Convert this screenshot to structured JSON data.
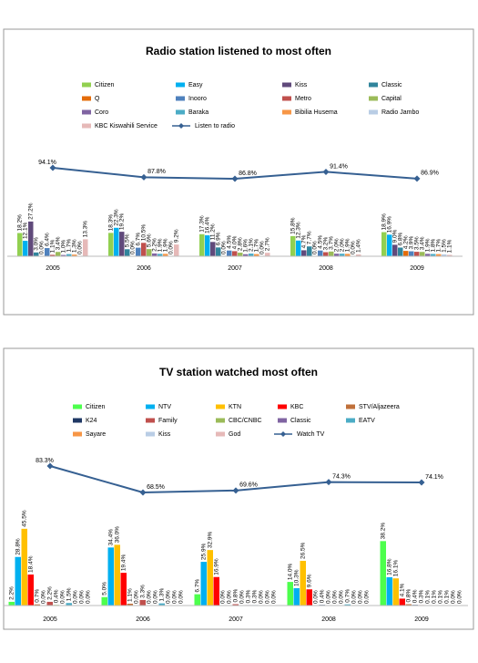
{
  "chart_data": [
    {
      "type": "bar",
      "title": "Radio station listened to most often",
      "categories": [
        "2005",
        "2006",
        "2007",
        "2008",
        "2009"
      ],
      "series": [
        {
          "name": "Citizen",
          "color": "#92d050",
          "values": [
            18.2,
            18.3,
            17.3,
            15.8,
            18.9
          ],
          "value_labels": [
            "18.2%",
            "18.3%",
            "17.3%",
            "15.8%",
            "18.9%"
          ]
        },
        {
          "name": "Easy",
          "color": "#00b0f0",
          "values": [
            12.1,
            22.3,
            16.4,
            12.3,
            16.9
          ],
          "value_labels": [
            "12.1%",
            "22.3%",
            "16.4%",
            "12.3%",
            "16.9%"
          ]
        },
        {
          "name": "Kiss",
          "color": "#604a7b",
          "values": [
            27.2,
            19.2,
            11.2,
            4.7,
            9.0
          ],
          "value_labels": [
            "27.2%",
            "19.2%",
            "11.2%",
            "4.7%",
            "9.0%"
          ]
        },
        {
          "name": "Classic",
          "color": "#31859c",
          "values": [
            3.0,
            5.5,
            6.9,
            7.7,
            6.8
          ],
          "value_labels": [
            "3.0%",
            "5.5%",
            "6.9%",
            "7.7%",
            "6.8%"
          ]
        },
        {
          "name": "Q",
          "color": "#e46c0a",
          "values": [
            0.0,
            0.0,
            0.0,
            0.0,
            4.2
          ],
          "value_labels": [
            "0.0%",
            "0.0%",
            "0.0%",
            "0.0%",
            "4.2%"
          ]
        },
        {
          "name": "Inooro",
          "color": "#4f81bd",
          "values": [
            6.4,
            6.7,
            4.5,
            4.5,
            3.9
          ],
          "value_labels": [
            "6.4%",
            "6.7%",
            "4.5%",
            "4.5%",
            "3.9%"
          ]
        },
        {
          "name": "Metro",
          "color": "#c0504d",
          "values": [
            1.1,
            10.5,
            4.0,
            3.2,
            3.5
          ],
          "value_labels": [
            "1.1%",
            "10.5%",
            "4.0%",
            "3.2%",
            "3.5%"
          ]
        },
        {
          "name": "Capital",
          "color": "#9bbb59",
          "values": [
            3.4,
            5.6,
            2.8,
            3.7,
            3.4
          ],
          "value_labels": [
            "3.4%",
            "5.6%",
            "2.8%",
            "3.7%",
            "3.4%"
          ]
        },
        {
          "name": "Coro",
          "color": "#8064a2",
          "values": [
            1.0,
            2.2,
            1.6,
            2.0,
            1.9
          ],
          "value_labels": [
            "1.0%",
            "2.2%",
            "1.6%",
            "2.0%",
            "1.9%"
          ]
        },
        {
          "name": "Baraka",
          "color": "#4bacc6",
          "values": [
            1.7,
            1.9,
            2.1,
            2.0,
            1.8
          ],
          "value_labels": [
            "1.7%",
            "1.9%",
            "2.1%",
            "2.0%",
            "1.8%"
          ]
        },
        {
          "name": "Bibilia Husema",
          "color": "#f79646",
          "values": [
            1.3,
            1.9,
            1.7,
            1.9,
            1.7
          ],
          "value_labels": [
            "1.3%",
            "1.9%",
            "1.7%",
            "1.9%",
            "1.7%"
          ]
        },
        {
          "name": "Radio Jambo",
          "color": "#b9cde5",
          "values": [
            0.0,
            0.0,
            0.0,
            0.0,
            1.5
          ],
          "value_labels": [
            "0.0%",
            "0.0%",
            "0.0%",
            "0.0%",
            "1.5%"
          ]
        },
        {
          "name": "KBC Kiswahili Service",
          "color": "#e6b9b8",
          "values": [
            13.3,
            9.2,
            2.7,
            1.4,
            1.1
          ],
          "value_labels": [
            "13.3%",
            "9.2%",
            "2.7%",
            "1.4%",
            "1.1%"
          ]
        },
        {
          "name": "Listen to radio",
          "type": "line",
          "color": "#366092",
          "values": [
            94.1,
            87.8,
            86.8,
            91.4,
            86.9
          ],
          "value_labels": [
            "94.1%",
            "87.8%",
            "86.8%",
            "91.4%",
            "86.9%"
          ]
        }
      ]
    },
    {
      "type": "bar",
      "title": "TV station watched most often",
      "categories": [
        "2005",
        "2006",
        "2007",
        "2008",
        "2009"
      ],
      "series": [
        {
          "name": "Citizen",
          "color": "#4dff4d",
          "values": [
            2.2,
            5.0,
            6.7,
            14.0,
            38.2
          ],
          "value_labels": [
            "2.2%",
            "5.0%",
            "6.7%",
            "14.0%",
            "38.2%"
          ]
        },
        {
          "name": "NTV",
          "color": "#00b0f0",
          "values": [
            28.8,
            34.4,
            25.9,
            10.3,
            16.8
          ],
          "value_labels": [
            "28.8%",
            "34.4%",
            "25.9%",
            "10.3%",
            "16.8%"
          ]
        },
        {
          "name": "KTN",
          "color": "#ffc000",
          "values": [
            45.5,
            36.0,
            32.9,
            26.5,
            16.1
          ],
          "value_labels": [
            "45.5%",
            "36.0%",
            "32.9%",
            "26.5%",
            "16.1%"
          ]
        },
        {
          "name": "KBC",
          "color": "#ff0000",
          "values": [
            18.4,
            19.4,
            16.9,
            9.6,
            4.1
          ],
          "value_labels": [
            "18.4%",
            "19.4%",
            "16.9%",
            "9.6%",
            "4.1%"
          ]
        },
        {
          "name": "STV/Aljazeera",
          "color": "#c0703a",
          "values": [
            0.7,
            1.1,
            0.0,
            0.0,
            0.8
          ],
          "value_labels": [
            "0.7%",
            "1.1%",
            "0.0%",
            "0.0%",
            "0.8%"
          ]
        },
        {
          "name": "K24",
          "color": "#1f3864",
          "values": [
            0.0,
            0.0,
            0.0,
            0.4,
            0.4
          ],
          "value_labels": [
            "0.0%",
            "0.0%",
            "0.0%",
            "0.4%",
            "0.4%"
          ]
        },
        {
          "name": "Family",
          "color": "#c0504d",
          "values": [
            2.2,
            3.3,
            0.8,
            0.0,
            0.3
          ],
          "value_labels": [
            "2.2%",
            "3.3%",
            "0.8%",
            "0.0%",
            "0.3%"
          ]
        },
        {
          "name": "CBC/CNBC",
          "color": "#9bbb59",
          "values": [
            0.4,
            0.0,
            0.0,
            0.0,
            0.1
          ],
          "value_labels": [
            "0.4%",
            "0.0%",
            "0.0%",
            "0.0%",
            "0.1%"
          ]
        },
        {
          "name": "Classic",
          "color": "#8064a2",
          "values": [
            0.0,
            0.0,
            0.3,
            0.0,
            0.1
          ],
          "value_labels": [
            "0.0%",
            "0.0%",
            "0.3%",
            "0.0%",
            "0.1%"
          ]
        },
        {
          "name": "EATV",
          "color": "#4bacc6",
          "values": [
            1.5,
            1.3,
            0.3,
            0.7,
            0.1
          ],
          "value_labels": [
            "1.5%",
            "1.3%",
            "0.3%",
            "0.7%",
            "0.1%"
          ]
        },
        {
          "name": "Sayare",
          "color": "#f79646",
          "values": [
            0.0,
            0.0,
            0.0,
            0.0,
            0.1
          ],
          "value_labels": [
            "0.0%",
            "0.0%",
            "0.0%",
            "0.0%",
            "0.1%"
          ]
        },
        {
          "name": "Kiss",
          "color": "#b9cde5",
          "values": [
            0.0,
            0.0,
            0.0,
            0.0,
            0.0
          ],
          "value_labels": [
            "0.0%",
            "0.0%",
            "0.0%",
            "0.0%",
            "0.0%"
          ]
        },
        {
          "name": "God",
          "color": "#e6b9b8",
          "values": [
            0.0,
            0.0,
            0.0,
            0.0,
            0.0
          ],
          "value_labels": [
            "0.0%",
            "0.0%",
            "0.0%",
            "0.0%",
            "0.0%"
          ]
        },
        {
          "name": "Watch TV",
          "type": "line",
          "color": "#366092",
          "values": [
            83.3,
            68.5,
            69.6,
            74.3,
            74.1
          ],
          "value_labels": [
            "83.3%",
            "68.5%",
            "69.6%",
            "74.3%",
            "74.1%"
          ]
        }
      ]
    }
  ]
}
